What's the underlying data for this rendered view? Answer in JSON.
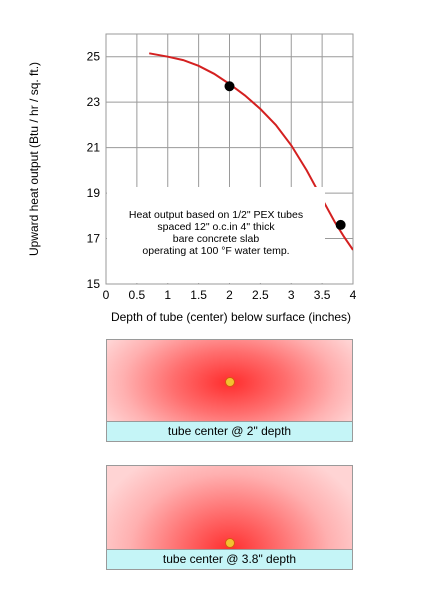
{
  "chart_data": {
    "type": "line",
    "title": "",
    "xlabel": "Depth of tube (center) below surface (inches)",
    "ylabel": "Upward heat output (Btu / hr / sq. ft.)",
    "xlim": [
      0,
      4
    ],
    "ylim": [
      15,
      26
    ],
    "x_ticks": [
      0,
      0.5,
      1,
      1.5,
      2,
      2.5,
      3,
      3.5,
      4
    ],
    "x_tick_labels": [
      "0",
      "0.5",
      "1",
      "1.5",
      "2",
      "2.5",
      "3",
      "3.5",
      "4"
    ],
    "y_ticks": [
      15,
      17,
      19,
      21,
      23,
      25
    ],
    "y_tick_labels": [
      "15",
      "17",
      "19",
      "21",
      "23",
      "25"
    ],
    "grid": true,
    "series": [
      {
        "name": "",
        "color": "#d42020",
        "x": [
          0.7,
          1.0,
          1.25,
          1.5,
          1.75,
          2.0,
          2.25,
          2.5,
          2.75,
          3.0,
          3.25,
          3.5,
          3.7,
          3.85,
          4.0
        ],
        "y": [
          25.15,
          25.0,
          24.85,
          24.6,
          24.25,
          23.8,
          23.3,
          22.7,
          22.0,
          21.1,
          20.0,
          18.75,
          17.75,
          17.1,
          16.5
        ]
      }
    ],
    "markers": [
      {
        "x": 2.0,
        "y": 23.7
      },
      {
        "x": 3.8,
        "y": 17.6
      }
    ],
    "annotation_lines": [
      "Heat output based on 1/2\" PEX tubes",
      "spaced 12\" o.c.in 4\" thick",
      "bare concrete slab",
      "operating at 100 °F water temp."
    ]
  },
  "panels": [
    {
      "caption": "tube center @ 2\" depth",
      "depth": 2.0
    },
    {
      "caption": "tube center @ 3.8\" depth",
      "depth": 3.8
    }
  ],
  "colors": {
    "curve": "#d42020",
    "grid": "#9a9a9a",
    "caption_bg": "#c5f5f7",
    "tube_fill": "#f2c230",
    "tube_ring": "#d35a10"
  }
}
